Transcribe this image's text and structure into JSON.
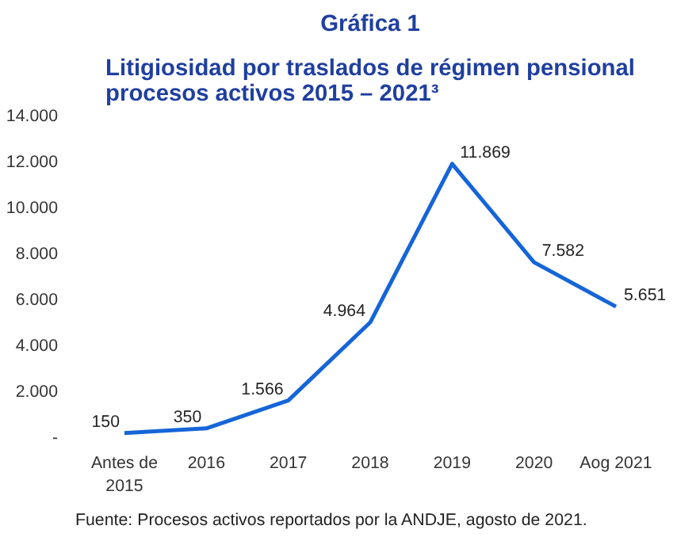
{
  "chart_data": {
    "type": "line",
    "title": "Gráfica 1",
    "subtitle": "Litigiosidad por traslados de régimen pensional\nprocesos activos 2015 – 2021³",
    "categories": [
      "Antes de\n2015",
      "2016",
      "2017",
      "2018",
      "2019",
      "2020",
      "Aog 2021"
    ],
    "series": [
      {
        "color": "#1565d8",
        "values": [
          150,
          350,
          1566,
          4964,
          11869,
          7582,
          5651
        ],
        "value_labels": [
          "150",
          "350",
          "1.566",
          "4.964",
          "11.869",
          "7.582",
          "5.651"
        ]
      }
    ],
    "ylim": [
      0,
      14000
    ],
    "yticks": [
      {
        "value": 0,
        "label": "-"
      },
      {
        "value": 2000,
        "label": "2.000"
      },
      {
        "value": 4000,
        "label": "4.000"
      },
      {
        "value": 6000,
        "label": "6.000"
      },
      {
        "value": 8000,
        "label": "8.000"
      },
      {
        "value": 10000,
        "label": "10.000"
      },
      {
        "value": 12000,
        "label": "12.000"
      },
      {
        "value": 14000,
        "label": "14.000"
      }
    ],
    "grid": false,
    "marker": "none",
    "line_style": "solid",
    "annotations": [
      "Fuente: Procesos activos reportados por la ANDJE, agosto de 2021."
    ]
  }
}
